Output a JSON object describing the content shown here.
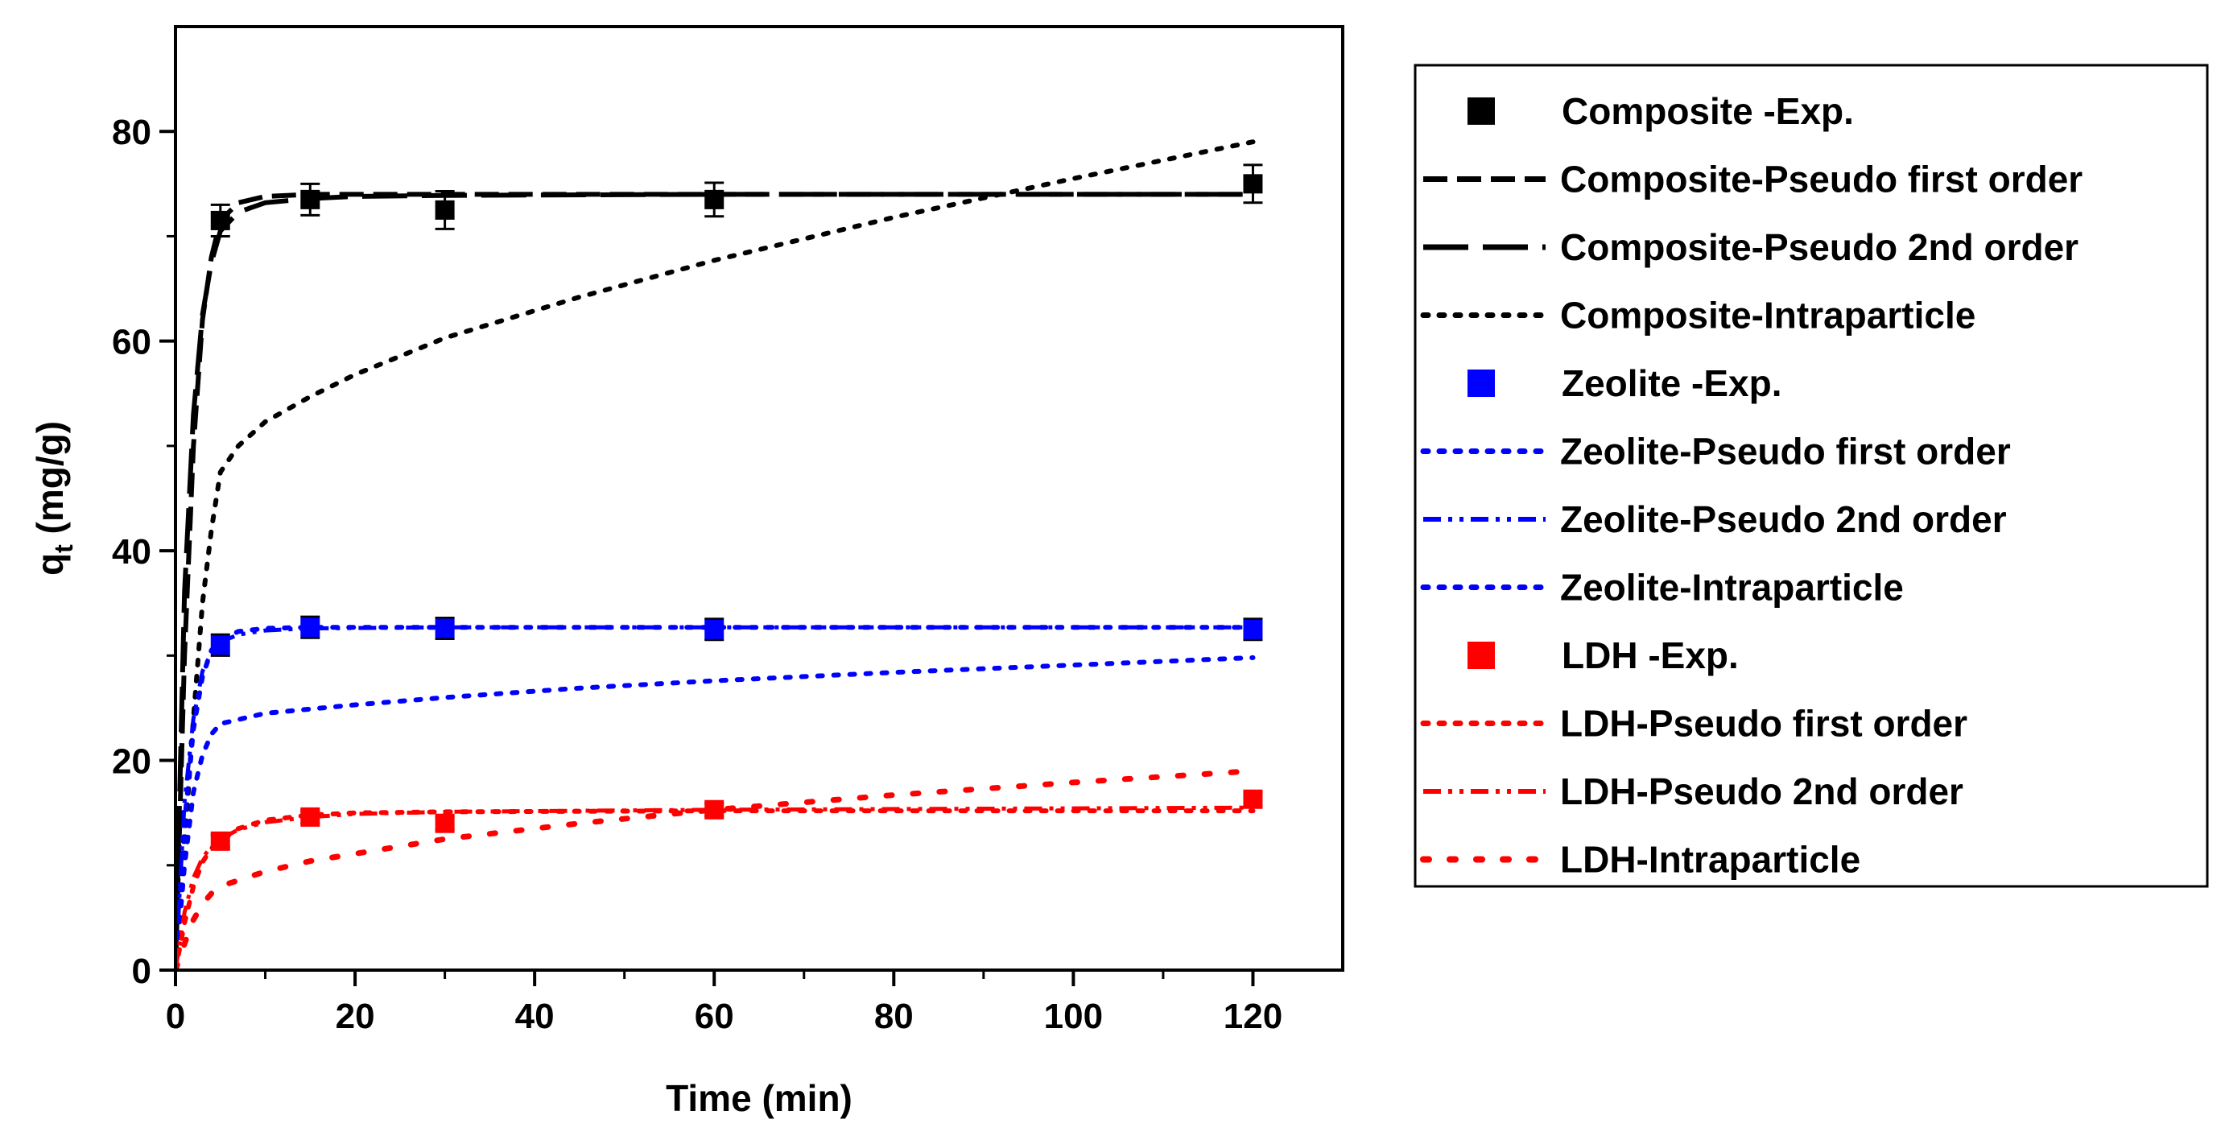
{
  "chart_data": {
    "type": "line",
    "title": "",
    "xlabel": "Time (min)",
    "ylabel_main": "q",
    "ylabel_sub": "t",
    "ylabel_units": " (mg/g)",
    "xlim": [
      0,
      130
    ],
    "ylim": [
      0,
      90
    ],
    "xticks": [
      0,
      20,
      40,
      60,
      80,
      100,
      120
    ],
    "yticks": [
      0,
      20,
      40,
      60,
      80
    ],
    "legend_position": "right-outside",
    "series": [
      {
        "name": "Composite -Exp.",
        "kind": "marker",
        "color": "#000000",
        "x": [
          5,
          15,
          30,
          60,
          120
        ],
        "y": [
          71.5,
          73.5,
          72.5,
          73.5,
          75.0
        ],
        "err": [
          1.5,
          1.5,
          1.8,
          1.6,
          1.8
        ]
      },
      {
        "name": "Composite-Pseudo first order",
        "kind": "line",
        "style": "dash",
        "color": "#000000",
        "x": [
          0,
          1,
          2,
          3,
          4,
          5,
          7,
          10,
          15,
          20,
          30,
          60,
          90,
          120
        ],
        "y": [
          0,
          30,
          50,
          62,
          68,
          71.5,
          73.2,
          73.8,
          74,
          74,
          74,
          74,
          74,
          74
        ]
      },
      {
        "name": "Composite-Pseudo 2nd order",
        "kind": "line",
        "style": "longdash",
        "color": "#000000",
        "x": [
          0,
          1,
          2,
          3,
          4,
          5,
          7,
          10,
          15,
          20,
          30,
          60,
          90,
          120
        ],
        "y": [
          0,
          36,
          53,
          62.5,
          67.5,
          70.5,
          72.3,
          73.2,
          73.6,
          73.8,
          73.9,
          74,
          74,
          74
        ]
      },
      {
        "name": "Composite-Intraparticle",
        "kind": "line",
        "style": "dot",
        "color": "#000000",
        "x": [
          0,
          1,
          2,
          3,
          4,
          5,
          7,
          10,
          15,
          20,
          30,
          45,
          60,
          80,
          100,
          120
        ],
        "y": [
          0,
          12,
          24,
          35,
          42,
          47.5,
          50,
          52.3,
          54.7,
          56.8,
          60.3,
          64.2,
          67.7,
          71.8,
          75.5,
          79
        ]
      },
      {
        "name": "Zeolite -Exp.",
        "kind": "marker",
        "color": "#0000ff",
        "x": [
          5,
          15,
          30,
          60,
          120
        ],
        "y": [
          31.0,
          32.7,
          32.6,
          32.5,
          32.5
        ],
        "err": [
          1.0,
          1.0,
          1.0,
          1.0,
          1.0
        ]
      },
      {
        "name": "Zeolite-Pseudo first order",
        "kind": "line",
        "style": "dot",
        "color": "#0000ff",
        "x": [
          0,
          1,
          2,
          3,
          4,
          5,
          7,
          10,
          15,
          30,
          60,
          90,
          120
        ],
        "y": [
          0,
          14,
          23,
          28,
          30.5,
          31.5,
          32.3,
          32.6,
          32.7,
          32.7,
          32.7,
          32.7,
          32.7
        ]
      },
      {
        "name": "Zeolite-Pseudo 2nd order",
        "kind": "line",
        "style": "dashdotdot",
        "color": "#0000ff",
        "x": [
          0,
          1,
          2,
          3,
          4,
          5,
          7,
          10,
          15,
          30,
          60,
          90,
          120
        ],
        "y": [
          0,
          16,
          24,
          28.5,
          30.3,
          31.3,
          32.0,
          32.4,
          32.6,
          32.7,
          32.7,
          32.7,
          32.7
        ]
      },
      {
        "name": "Zeolite-Intraparticle",
        "kind": "line",
        "style": "dot",
        "color": "#0000ff",
        "x": [
          0,
          1,
          2,
          3,
          4,
          5,
          10,
          20,
          30,
          45,
          60,
          80,
          100,
          120
        ],
        "y": [
          0,
          10,
          17,
          20.5,
          22.5,
          23.5,
          24.5,
          25.3,
          26.0,
          26.9,
          27.6,
          28.4,
          29.1,
          29.8
        ]
      },
      {
        "name": "LDH -Exp.",
        "kind": "marker",
        "color": "#ff0000",
        "x": [
          5,
          15,
          30,
          60,
          120
        ],
        "y": [
          12.3,
          14.6,
          14.0,
          15.3,
          16.3
        ],
        "err": [
          0.6,
          0.6,
          0.6,
          0.6,
          0.6
        ]
      },
      {
        "name": "LDH-Pseudo first order",
        "kind": "line",
        "style": "dot",
        "color": "#ff0000",
        "x": [
          0,
          1,
          2,
          3,
          4,
          5,
          7,
          10,
          15,
          20,
          30,
          60,
          90,
          120
        ],
        "y": [
          0,
          4.5,
          8,
          10.3,
          11.6,
          12.3,
          13.5,
          14.3,
          14.8,
          15.0,
          15.1,
          15.2,
          15.2,
          15.2
        ]
      },
      {
        "name": "LDH-Pseudo 2nd order",
        "kind": "line",
        "style": "dashdotdot",
        "color": "#ff0000",
        "x": [
          0,
          1,
          2,
          3,
          4,
          5,
          7,
          10,
          15,
          20,
          30,
          60,
          90,
          120
        ],
        "y": [
          0,
          5.5,
          8.8,
          10.7,
          11.8,
          12.5,
          13.4,
          14.1,
          14.6,
          14.9,
          15.1,
          15.3,
          15.4,
          15.5
        ]
      },
      {
        "name": "LDH-Intraparticle",
        "kind": "line",
        "style": "sparsedot",
        "color": "#ff0000",
        "x": [
          0,
          1,
          2,
          3,
          4,
          5,
          10,
          15,
          30,
          45,
          60,
          80,
          100,
          120
        ],
        "y": [
          0,
          2.5,
          4.8,
          6.3,
          7.3,
          8.0,
          9.4,
          10.4,
          12.5,
          14.0,
          15.3,
          16.7,
          17.9,
          19.0
        ]
      }
    ]
  }
}
